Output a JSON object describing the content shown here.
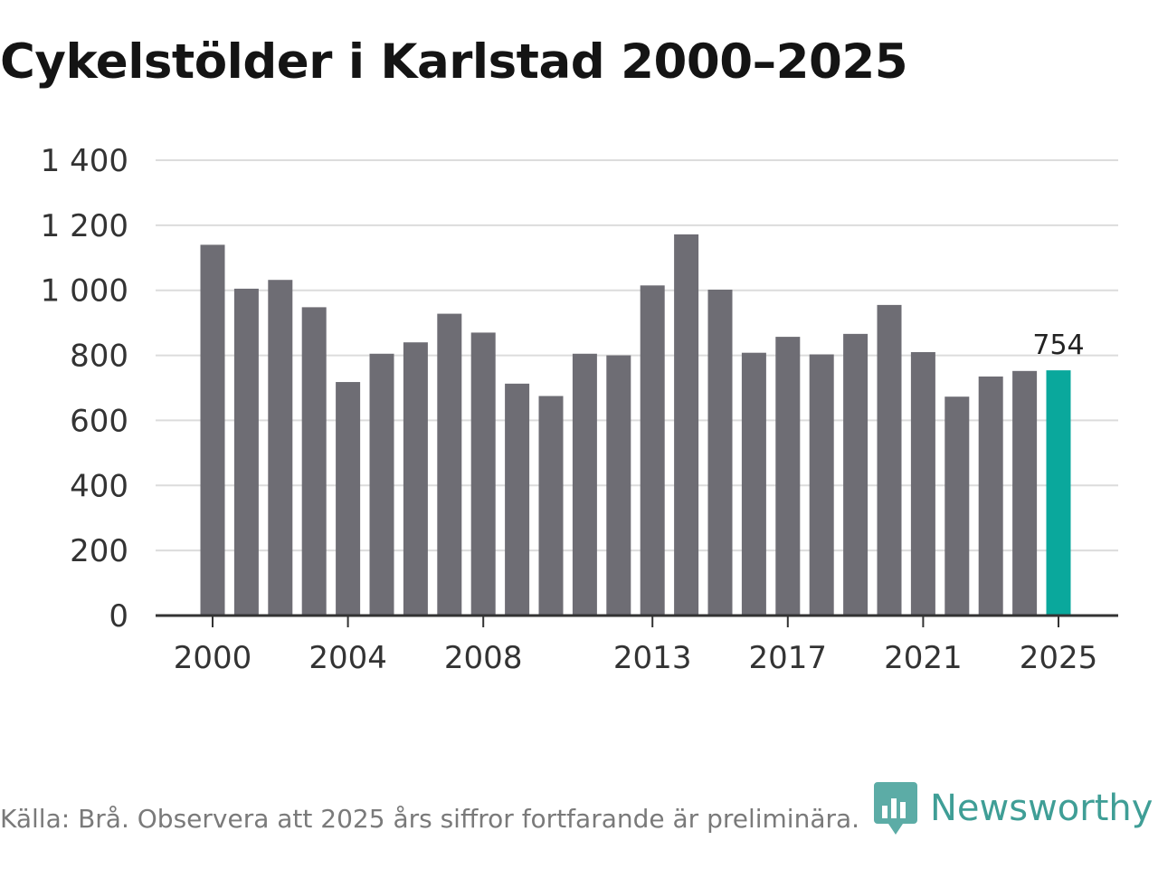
{
  "chart_data": {
    "type": "bar",
    "title": "Cykelstölder i Karlstad 2000–2025",
    "categories": [
      "2000",
      "2001",
      "2002",
      "2003",
      "2004",
      "2005",
      "2006",
      "2007",
      "2008",
      "2009",
      "2010",
      "2011",
      "2012",
      "2013",
      "2014",
      "2015",
      "2016",
      "2017",
      "2018",
      "2019",
      "2020",
      "2021",
      "2022",
      "2023",
      "2024",
      "2025"
    ],
    "values": [
      1140,
      1005,
      1032,
      948,
      718,
      805,
      840,
      928,
      870,
      713,
      675,
      805,
      800,
      1015,
      1172,
      1002,
      808,
      857,
      803,
      866,
      955,
      810,
      673,
      735,
      752,
      754
    ],
    "x_tick_labels": [
      "2000",
      "2004",
      "2008",
      "2013",
      "2017",
      "2021",
      "2025"
    ],
    "y_ticks": [
      0,
      200,
      400,
      600,
      800,
      1000,
      1200,
      1400
    ],
    "y_tick_labels": [
      "0",
      "200",
      "400",
      "600",
      "800",
      "1 000",
      "1 200",
      "1 400"
    ],
    "ylim": [
      0,
      1400
    ],
    "xlabel": "",
    "ylabel": "",
    "grid": true,
    "highlight_index": 25,
    "annotation": "754",
    "colors": {
      "bar": "#6e6d74",
      "highlight": "#0aa89c",
      "grid": "#dcdcdc",
      "axis": "#333333"
    }
  },
  "footer": {
    "source": "Källa: Brå. Observera att 2025 års siffror fortfarande är preliminära.",
    "brand": "Newsworthy",
    "brand_icon": "bar-chart-icon",
    "brand_color": "#3f9e96"
  }
}
